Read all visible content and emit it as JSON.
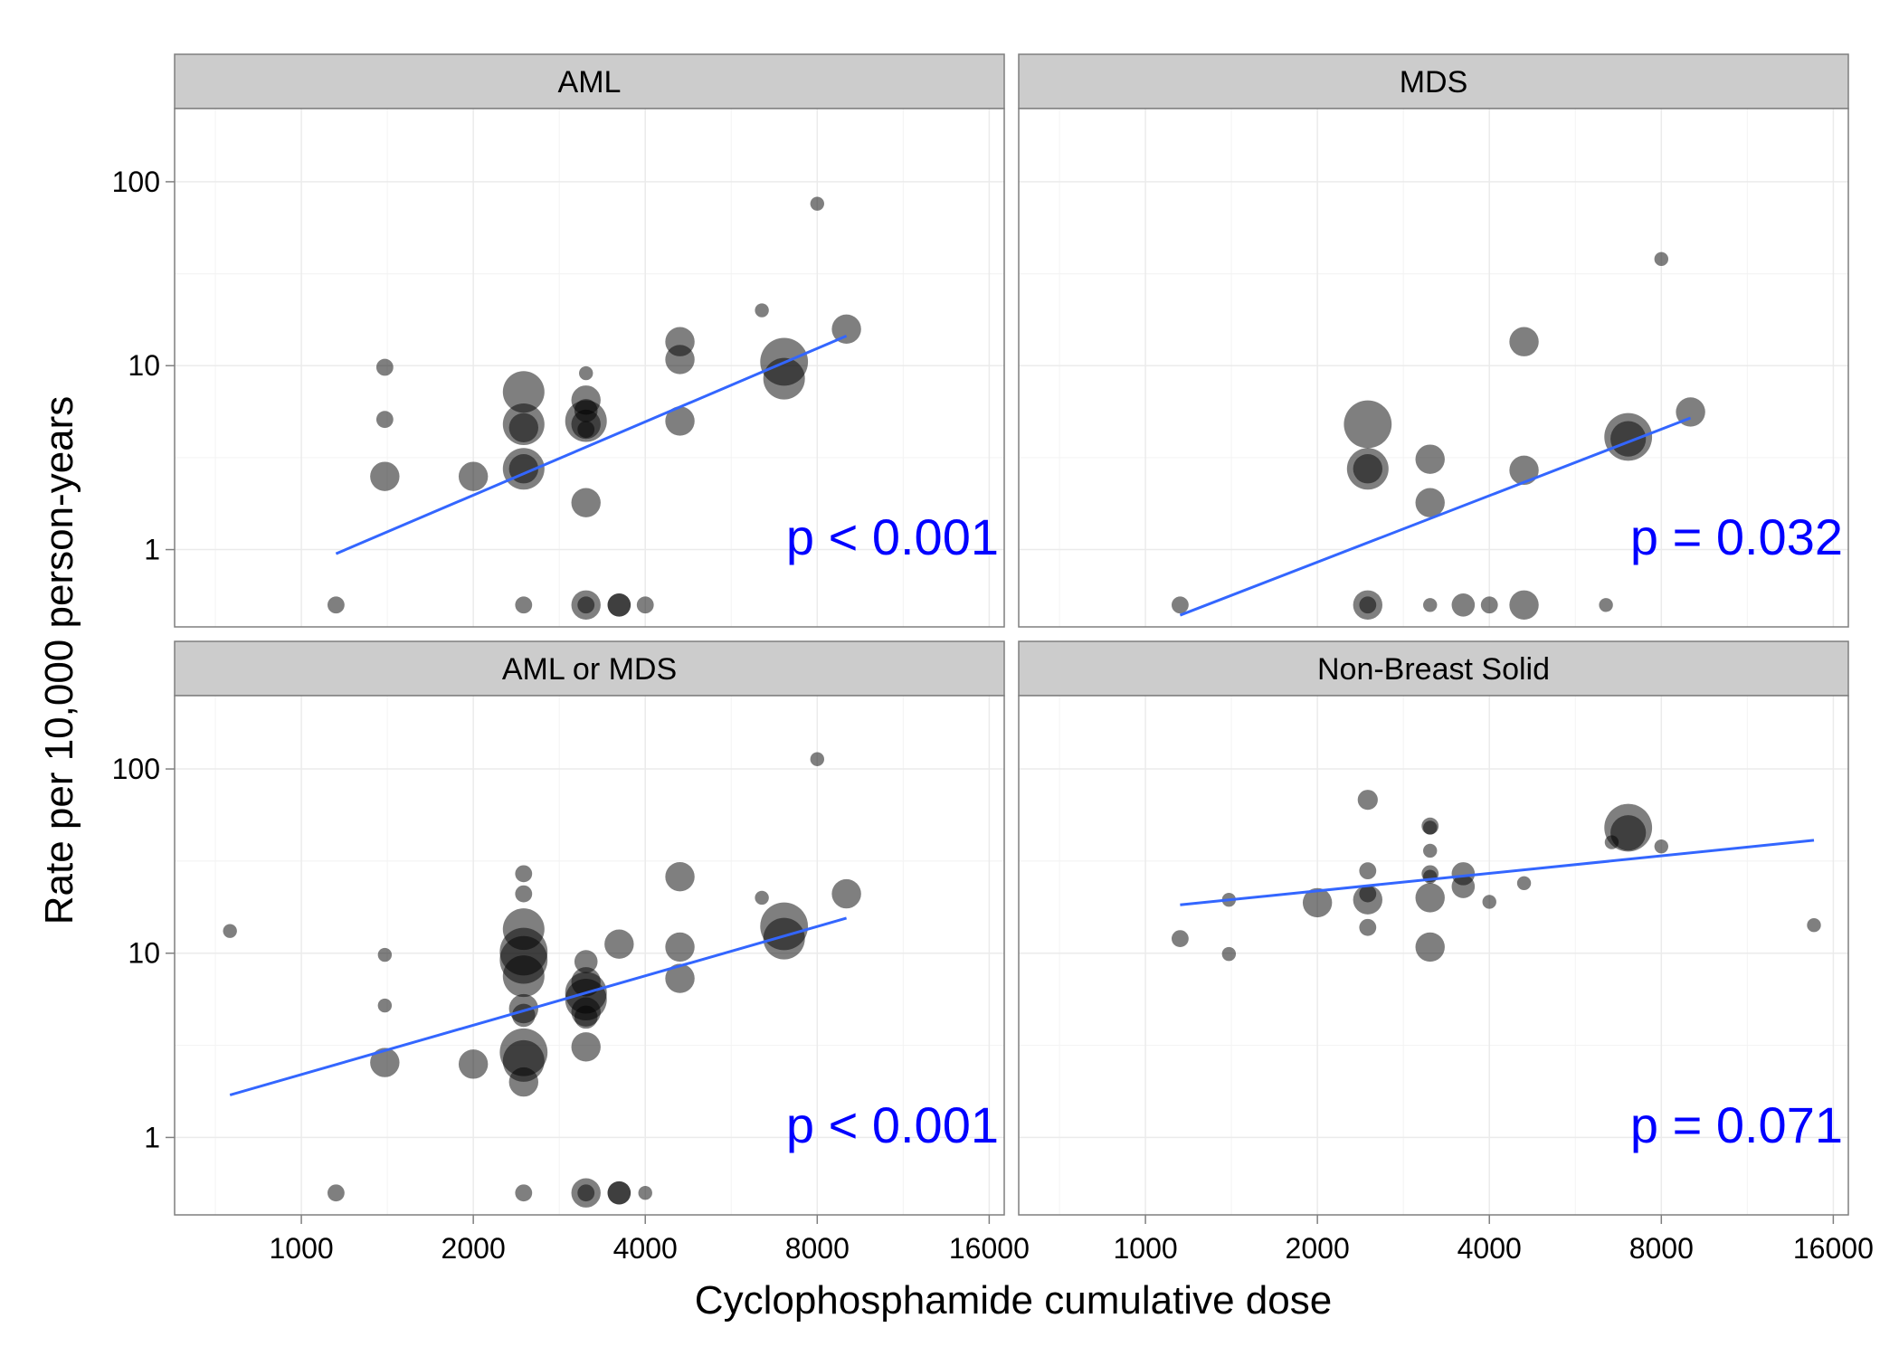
{
  "chart_data": {
    "type": "scatter",
    "layout": "facet-grid-2x2",
    "xlabel": "Cyclophosphamide cumulative dose",
    "ylabel": "Rate per 10,000 person-years",
    "x_scale": "log2",
    "y_scale": "log10",
    "xlim": [
      600,
      17000
    ],
    "ylim": [
      0.38,
      250
    ],
    "x_ticks": [
      1000,
      2000,
      4000,
      8000,
      16000
    ],
    "x_tick_labels_left": [
      "1000",
      "2000",
      "4000",
      "8000",
      "16000"
    ],
    "x_tick_labels_right": [
      "1000",
      "2000",
      "4000",
      "8000",
      "16000"
    ],
    "y_ticks": [
      1,
      10,
      100
    ],
    "y_tick_labels": [
      "1",
      "10",
      "100"
    ],
    "point_color": "#000000",
    "point_opacity": 0.5,
    "fit_color": "#3366FF",
    "pvalue_color": "#0000FF",
    "strip_color": "#CCCCCC",
    "grid_color": "#EBEBEB",
    "panels": [
      {
        "label": "AML",
        "pvalue": "p < 0.001",
        "fit": {
          "x": [
            1150,
            9000
          ],
          "y": [
            0.95,
            14.5
          ]
        },
        "points": [
          {
            "x": 1150,
            "y": 0.5,
            "s": 1
          },
          {
            "x": 1400,
            "y": 9.8,
            "s": 1
          },
          {
            "x": 1400,
            "y": 5.1,
            "s": 1
          },
          {
            "x": 1400,
            "y": 2.5,
            "s": 3
          },
          {
            "x": 2000,
            "y": 2.5,
            "s": 3
          },
          {
            "x": 2450,
            "y": 7.2,
            "s": 5
          },
          {
            "x": 2450,
            "y": 4.8,
            "s": 5
          },
          {
            "x": 2450,
            "y": 4.6,
            "s": 3
          },
          {
            "x": 2450,
            "y": 2.75,
            "s": 5
          },
          {
            "x": 2450,
            "y": 2.75,
            "s": 3
          },
          {
            "x": 2450,
            "y": 0.5,
            "s": 1
          },
          {
            "x": 3150,
            "y": 9.1,
            "s": 0.5
          },
          {
            "x": 3150,
            "y": 6.5,
            "s": 3
          },
          {
            "x": 3150,
            "y": 5.7,
            "s": 2
          },
          {
            "x": 3150,
            "y": 5.0,
            "s": 5
          },
          {
            "x": 3150,
            "y": 4.8,
            "s": 3
          },
          {
            "x": 3150,
            "y": 4.5,
            "s": 1
          },
          {
            "x": 3150,
            "y": 1.8,
            "s": 3
          },
          {
            "x": 3150,
            "y": 0.5,
            "s": 3
          },
          {
            "x": 3150,
            "y": 0.5,
            "s": 1
          },
          {
            "x": 3600,
            "y": 0.5,
            "s": 2
          },
          {
            "x": 3600,
            "y": 0.5,
            "s": 2
          },
          {
            "x": 4000,
            "y": 0.5,
            "s": 1
          },
          {
            "x": 4600,
            "y": 13.5,
            "s": 3
          },
          {
            "x": 4600,
            "y": 10.8,
            "s": 3
          },
          {
            "x": 4600,
            "y": 5.0,
            "s": 3
          },
          {
            "x": 6400,
            "y": 20,
            "s": 0.5
          },
          {
            "x": 7000,
            "y": 10.5,
            "s": 6
          },
          {
            "x": 7000,
            "y": 8.5,
            "s": 5
          },
          {
            "x": 8000,
            "y": 76,
            "s": 0.5
          },
          {
            "x": 9000,
            "y": 15.8,
            "s": 3
          }
        ]
      },
      {
        "label": "MDS",
        "pvalue": "p = 0.032",
        "fit": {
          "x": [
            1150,
            9000
          ],
          "y": [
            0.44,
            5.2
          ]
        },
        "points": [
          {
            "x": 1150,
            "y": 0.5,
            "s": 1
          },
          {
            "x": 2450,
            "y": 4.8,
            "s": 6
          },
          {
            "x": 2450,
            "y": 2.75,
            "s": 5
          },
          {
            "x": 2450,
            "y": 2.75,
            "s": 3
          },
          {
            "x": 2450,
            "y": 0.5,
            "s": 3
          },
          {
            "x": 2450,
            "y": 0.5,
            "s": 1
          },
          {
            "x": 3150,
            "y": 3.1,
            "s": 3
          },
          {
            "x": 3150,
            "y": 1.8,
            "s": 3
          },
          {
            "x": 3150,
            "y": 0.5,
            "s": 0.5
          },
          {
            "x": 3600,
            "y": 0.5,
            "s": 2
          },
          {
            "x": 4000,
            "y": 0.5,
            "s": 1
          },
          {
            "x": 4600,
            "y": 13.5,
            "s": 3
          },
          {
            "x": 4600,
            "y": 2.7,
            "s": 3
          },
          {
            "x": 4600,
            "y": 0.5,
            "s": 3
          },
          {
            "x": 6400,
            "y": 0.5,
            "s": 0.5
          },
          {
            "x": 7000,
            "y": 4.1,
            "s": 6
          },
          {
            "x": 7000,
            "y": 4.0,
            "s": 4
          },
          {
            "x": 8000,
            "y": 38,
            "s": 0.5
          },
          {
            "x": 9000,
            "y": 5.6,
            "s": 3
          }
        ]
      },
      {
        "label": "AML or MDS",
        "pvalue": "p < 0.001",
        "fit": {
          "x": [
            750,
            9000
          ],
          "y": [
            1.7,
            15.5
          ]
        },
        "points": [
          {
            "x": 750,
            "y": 13.2,
            "s": 0.5
          },
          {
            "x": 1150,
            "y": 0.5,
            "s": 1
          },
          {
            "x": 1400,
            "y": 9.8,
            "s": 0.5
          },
          {
            "x": 1400,
            "y": 5.2,
            "s": 0.5
          },
          {
            "x": 1400,
            "y": 2.55,
            "s": 3
          },
          {
            "x": 2000,
            "y": 2.5,
            "s": 3
          },
          {
            "x": 2450,
            "y": 27,
            "s": 1
          },
          {
            "x": 2450,
            "y": 21,
            "s": 1
          },
          {
            "x": 2450,
            "y": 13.5,
            "s": 5
          },
          {
            "x": 2450,
            "y": 10.2,
            "s": 6
          },
          {
            "x": 2450,
            "y": 9.2,
            "s": 6
          },
          {
            "x": 2450,
            "y": 7.5,
            "s": 5
          },
          {
            "x": 2450,
            "y": 5.0,
            "s": 3
          },
          {
            "x": 2450,
            "y": 4.6,
            "s": 2
          },
          {
            "x": 2450,
            "y": 2.9,
            "s": 6
          },
          {
            "x": 2450,
            "y": 2.6,
            "s": 5
          },
          {
            "x": 2450,
            "y": 2.0,
            "s": 3
          },
          {
            "x": 2450,
            "y": 0.5,
            "s": 1
          },
          {
            "x": 3150,
            "y": 9.0,
            "s": 2
          },
          {
            "x": 3150,
            "y": 7.0,
            "s": 3
          },
          {
            "x": 3150,
            "y": 6.1,
            "s": 5
          },
          {
            "x": 3150,
            "y": 5.6,
            "s": 5
          },
          {
            "x": 3150,
            "y": 4.8,
            "s": 3
          },
          {
            "x": 3150,
            "y": 4.5,
            "s": 2
          },
          {
            "x": 3150,
            "y": 3.1,
            "s": 3
          },
          {
            "x": 3150,
            "y": 0.5,
            "s": 3
          },
          {
            "x": 3150,
            "y": 0.5,
            "s": 1
          },
          {
            "x": 3600,
            "y": 11.2,
            "s": 3
          },
          {
            "x": 3600,
            "y": 0.5,
            "s": 2
          },
          {
            "x": 3600,
            "y": 0.5,
            "s": 2
          },
          {
            "x": 4000,
            "y": 0.5,
            "s": 0.5
          },
          {
            "x": 4600,
            "y": 26,
            "s": 3
          },
          {
            "x": 4600,
            "y": 10.8,
            "s": 3
          },
          {
            "x": 4600,
            "y": 7.3,
            "s": 3
          },
          {
            "x": 6400,
            "y": 20,
            "s": 0.5
          },
          {
            "x": 7000,
            "y": 14,
            "s": 6
          },
          {
            "x": 7000,
            "y": 12,
            "s": 5
          },
          {
            "x": 8000,
            "y": 113,
            "s": 0.5
          },
          {
            "x": 9000,
            "y": 21,
            "s": 3
          }
        ]
      },
      {
        "label": "Non-Breast Solid",
        "pvalue": "p = 0.071",
        "fit": {
          "x": [
            1150,
            14800
          ],
          "y": [
            18.3,
            41
          ]
        },
        "points": [
          {
            "x": 1150,
            "y": 12,
            "s": 1
          },
          {
            "x": 1400,
            "y": 19.5,
            "s": 0.5
          },
          {
            "x": 1400,
            "y": 9.9,
            "s": 0.5
          },
          {
            "x": 2000,
            "y": 18.8,
            "s": 3
          },
          {
            "x": 2450,
            "y": 68,
            "s": 1.5
          },
          {
            "x": 2450,
            "y": 28,
            "s": 1
          },
          {
            "x": 2450,
            "y": 21,
            "s": 1
          },
          {
            "x": 2450,
            "y": 19.5,
            "s": 3
          },
          {
            "x": 2450,
            "y": 13.8,
            "s": 1
          },
          {
            "x": 3150,
            "y": 49,
            "s": 1
          },
          {
            "x": 3150,
            "y": 48,
            "s": 0.5
          },
          {
            "x": 3150,
            "y": 36,
            "s": 0.5
          },
          {
            "x": 3150,
            "y": 27,
            "s": 1
          },
          {
            "x": 3150,
            "y": 26,
            "s": 0.5
          },
          {
            "x": 3150,
            "y": 20,
            "s": 3
          },
          {
            "x": 3150,
            "y": 10.8,
            "s": 3
          },
          {
            "x": 3600,
            "y": 27,
            "s": 2
          },
          {
            "x": 3600,
            "y": 23,
            "s": 2
          },
          {
            "x": 4000,
            "y": 19,
            "s": 0.5
          },
          {
            "x": 4600,
            "y": 24,
            "s": 0.5
          },
          {
            "x": 7000,
            "y": 48,
            "s": 6
          },
          {
            "x": 7000,
            "y": 45,
            "s": 4
          },
          {
            "x": 6550,
            "y": 40,
            "s": 0.5
          },
          {
            "x": 8000,
            "y": 38,
            "s": 0.5
          },
          {
            "x": 14800,
            "y": 14.2,
            "s": 0.5
          }
        ]
      }
    ]
  }
}
